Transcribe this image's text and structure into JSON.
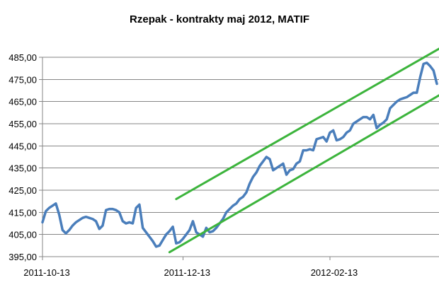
{
  "chart_data": {
    "type": "line",
    "title": "Rzepak - kontrakty maj 2012, MATIF",
    "xlabel": "",
    "ylabel": "",
    "ylim": [
      395,
      485
    ],
    "grid": true,
    "legend": "none",
    "y_ticks": [
      "395,00",
      "405,00",
      "415,00",
      "425,00",
      "435,00",
      "445,00",
      "455,00",
      "465,00",
      "475,00",
      "485,00"
    ],
    "x_ticks": [
      {
        "label": "2011-10-13",
        "index": 0
      },
      {
        "label": "2011-12-13",
        "index": 42
      },
      {
        "label": "2012-02-13",
        "index": 86
      }
    ],
    "series": [
      {
        "color": "#4a7ebb",
        "values": [
          410.5,
          415.5,
          417,
          418,
          419,
          414,
          407,
          405.5,
          407,
          409,
          410.5,
          411.5,
          412.5,
          413,
          412.5,
          412,
          411,
          407.5,
          409,
          416,
          416.5,
          416.5,
          416,
          415,
          411,
          410,
          410.5,
          410,
          417,
          418.5,
          408,
          406,
          404,
          402,
          399.5,
          400,
          402.5,
          405,
          406.5,
          408.5,
          401,
          401.5,
          403,
          405,
          407,
          411,
          406,
          405,
          404,
          408,
          406,
          406.5,
          408,
          410,
          412,
          415,
          416.5,
          418,
          419,
          421,
          422,
          424,
          428,
          431,
          433,
          436,
          438,
          440,
          439,
          434,
          435,
          436,
          437,
          432,
          434,
          434.5,
          437,
          438,
          443,
          443,
          443.5,
          443,
          448,
          448.5,
          449,
          447,
          451,
          452,
          447.5,
          448,
          449,
          451,
          452,
          455,
          456,
          457,
          458,
          458,
          457,
          459,
          453,
          454.5,
          455.5,
          457,
          462,
          463.5,
          465,
          466,
          466.5,
          467,
          468,
          469,
          469,
          476,
          482,
          482.5,
          481,
          479,
          473
        ]
      }
    ],
    "trend_channel": {
      "color": "#3cb43c",
      "upper": [
        {
          "index": 40,
          "value": 421
        },
        {
          "index": 120,
          "value": 490
        }
      ],
      "lower": [
        {
          "index": 38,
          "value": 397
        },
        {
          "index": 120,
          "value": 469
        }
      ]
    }
  }
}
